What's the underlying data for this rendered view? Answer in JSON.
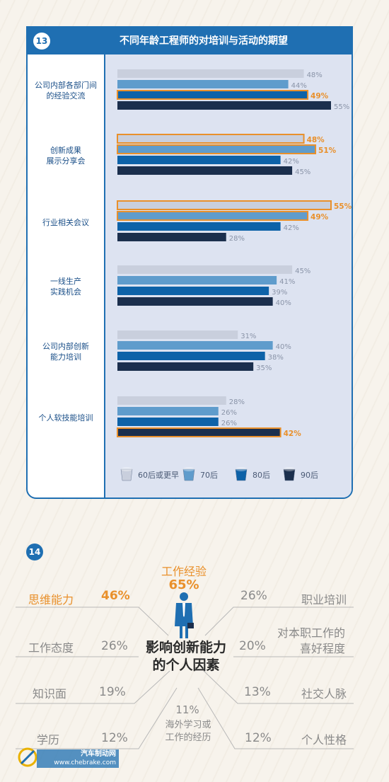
{
  "chart_data": [
    {
      "type": "bar",
      "orientation": "horizontal",
      "number_badge": "13",
      "title": "不同年龄工程师的对培训与活动的期望",
      "categories": [
        "公司内部各部门间\n的经验交流",
        "创新成果\n展示分享会",
        "行业相关会议",
        "一线生产\n实践机会",
        "公司内部创新\n能力培训",
        "个人软技能培训"
      ],
      "series": [
        {
          "name": "60后或更早",
          "color": "#c9cfdd",
          "values": [
            48,
            48,
            55,
            45,
            31,
            28
          ],
          "value_labels": [
            "48%",
            "48%",
            "55%",
            "45%",
            "31%",
            "28%"
          ]
        },
        {
          "name": "70后",
          "color": "#5f9ccc",
          "values": [
            44,
            51,
            49,
            41,
            40,
            26
          ],
          "value_labels": [
            "44%",
            "51%",
            "49%",
            "41%",
            "40%",
            "26%"
          ]
        },
        {
          "name": "80后",
          "color": "#0d62a8",
          "values": [
            49,
            42,
            42,
            39,
            38,
            26
          ],
          "value_labels": [
            "49%",
            "42%",
            "42%",
            "39%",
            "38%",
            "26%"
          ]
        },
        {
          "name": "90后",
          "color": "#1b2f4d",
          "values": [
            55,
            45,
            28,
            40,
            35,
            42
          ],
          "value_labels": [
            "55%",
            "45%",
            "28%",
            "40%",
            "35%",
            "42%"
          ]
        }
      ],
      "highlighted": [
        [
          0,
          2
        ],
        [
          1,
          0
        ],
        [
          1,
          1
        ],
        [
          2,
          0
        ],
        [
          2,
          1
        ],
        [
          5,
          3
        ]
      ],
      "highlight_color": "#e9902b",
      "xlim": [
        0,
        60
      ],
      "legend_position": "bottom"
    },
    {
      "type": "table",
      "number_badge": "14",
      "title": "影响创新能力\n的个人因素",
      "factors": [
        {
          "label": "工作经验",
          "value": "65%",
          "highlight": true
        },
        {
          "label": "思维能力",
          "value": "46%",
          "highlight": true
        },
        {
          "label": "职业培训",
          "value": "26%",
          "highlight": false
        },
        {
          "label": "工作态度",
          "value": "26%",
          "highlight": false
        },
        {
          "label": "对本职工作的\n喜好程度",
          "value": "20%",
          "highlight": false
        },
        {
          "label": "知识面",
          "value": "19%",
          "highlight": false
        },
        {
          "label": "社交人脉",
          "value": "13%",
          "highlight": false
        },
        {
          "label": "学历",
          "value": "12%",
          "highlight": false
        },
        {
          "label": "个人性格",
          "value": "12%",
          "highlight": false
        },
        {
          "label": "海外学习或\n工作的经历",
          "value": "11%",
          "highlight": false
        }
      ],
      "highlight_color": "#e9902b",
      "icon": "businessman-icon"
    }
  ],
  "watermark": {
    "name": "汽车制动网",
    "url": "www.chebrake.com",
    "logo": "brake-logo"
  }
}
